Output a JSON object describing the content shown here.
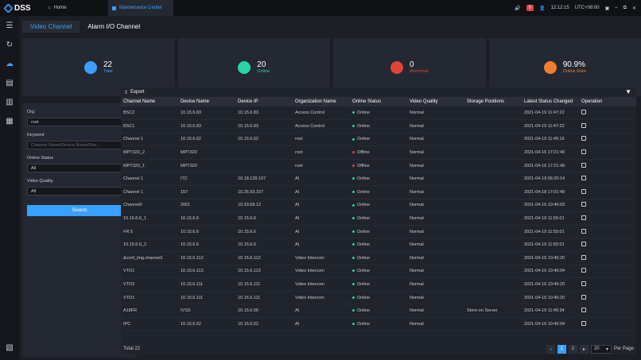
{
  "topbar": {
    "app_name": "DSS",
    "home_label": "Home",
    "active_tab_label": "Maintenance Center",
    "alarm_count": "0",
    "time": "12:12:15",
    "timezone": "UTC+08:00"
  },
  "subtabs": [
    "Video Channel",
    "Alarm I/O Channel"
  ],
  "cards": [
    {
      "value": "22",
      "label": "Total",
      "color": "#3aa0ff"
    },
    {
      "value": "20",
      "label": "Online",
      "color": "#27d6a4"
    },
    {
      "value": "0",
      "label": "Abnormal",
      "color": "#e0423c"
    },
    {
      "value": "90.9%",
      "label": "Online Rate",
      "color": "#f07e2e"
    }
  ],
  "filter": {
    "org_label": "Org",
    "org_value": "root",
    "keyword_label": "Keyword",
    "keyword_placeholder": "Channel Name/Device Name/Dev...",
    "online_status_label": "Online Status",
    "online_status_value": "All",
    "video_quality_label": "Video Quality",
    "video_quality_value": "All",
    "search_label": "Search"
  },
  "table": {
    "export_label": "Export",
    "columns": [
      "Channel Name",
      "Device Name",
      "Device IP",
      "Organization Name",
      "Online Status",
      "Video Quality",
      "Storage Positions",
      "Latest Status Changed",
      "Operation"
    ],
    "rows": [
      [
        "BSC2",
        "10.15.6.83",
        "10.15.6.83",
        "Access Control",
        "Online",
        "Normal",
        "",
        "2021-04-19 11:47:22"
      ],
      [
        "BSC1",
        "10.15.6.83",
        "10.15.6.83",
        "Access Control",
        "Online",
        "Normal",
        "",
        "2021-04-19 11:47:22"
      ],
      [
        "Channel 1",
        "10.15.6.62",
        "10.15.6.62",
        "root",
        "Online",
        "Normal",
        "",
        "2021-04-19 11:45:16"
      ],
      [
        "MPT320_2",
        "MPT320",
        "",
        "root",
        "Offline",
        "Normal",
        "",
        "2021-04-16 17:21:49"
      ],
      [
        "MPT320_1",
        "MPT320",
        "",
        "root",
        "Offline",
        "Normal",
        "",
        "2021-04-16 17:21:49"
      ],
      [
        "Channel 1",
        "ITC",
        "10.18.128.107",
        "AI",
        "Online",
        "Normal",
        "",
        "2021-04-19 06:20:14"
      ],
      [
        "Channel 1",
        "157",
        "10.35.93.157",
        "AI",
        "Online",
        "Normal",
        "",
        "2021-04-18 17:01:49"
      ],
      [
        "Channel0",
        "2001",
        "10.33.68.12",
        "AI",
        "Online",
        "Normal",
        "",
        "2021-04-16 10:46:03"
      ],
      [
        "10.15.6.6_1",
        "10.15.6.6",
        "10.15.6.6",
        "AI",
        "Online",
        "Normal",
        "",
        "2021-04-19 11:55:01"
      ],
      [
        "FR 5",
        "10.15.6.6",
        "10.15.6.6",
        "AI",
        "Online",
        "Normal",
        "",
        "2021-04-19 11:55:01"
      ],
      [
        "10.15.6.6_2",
        "10.15.6.6",
        "10.15.6.6",
        "AI",
        "Online",
        "Normal",
        "",
        "2021-04-19 11:55:01"
      ],
      [
        "&conf_img.channel1",
        "10.15.6.112",
        "10.15.6.112",
        "Video Intercom",
        "Online",
        "Normal",
        "",
        "2021-04-16 10:46:20"
      ],
      [
        "VTO1",
        "10.15.6.113",
        "10.15.6.113",
        "Video Intercom",
        "Online",
        "Normal",
        "",
        "2021-04-16 10:46:04"
      ],
      [
        "VTO2",
        "10.15.6.111",
        "10.15.6.111",
        "Video Intercom",
        "Online",
        "Normal",
        "",
        "2021-04-16 10:46:20"
      ],
      [
        "VTO1",
        "10.15.6.111",
        "10.15.6.111",
        "Video Intercom",
        "Online",
        "Normal",
        "",
        "2021-04-16 10:46:20"
      ],
      [
        "A18FR",
        "IVSS",
        "10.15.6.56",
        "AI",
        "Online",
        "Normal",
        "Store on Server",
        "2021-04-19 11:45:34"
      ],
      [
        "IPC",
        "10.15.6.52",
        "10.15.6.52",
        "AI",
        "Online",
        "Normal",
        "",
        "2021-04-16 10:46:04"
      ]
    ],
    "status_colors": {
      "Online": "#27d6a4",
      "Offline": "#e0423c"
    }
  },
  "footer": {
    "total_label": "Total 22",
    "pages": [
      "1",
      "2"
    ],
    "per_page": "20",
    "per_page_label": "Per Page"
  }
}
